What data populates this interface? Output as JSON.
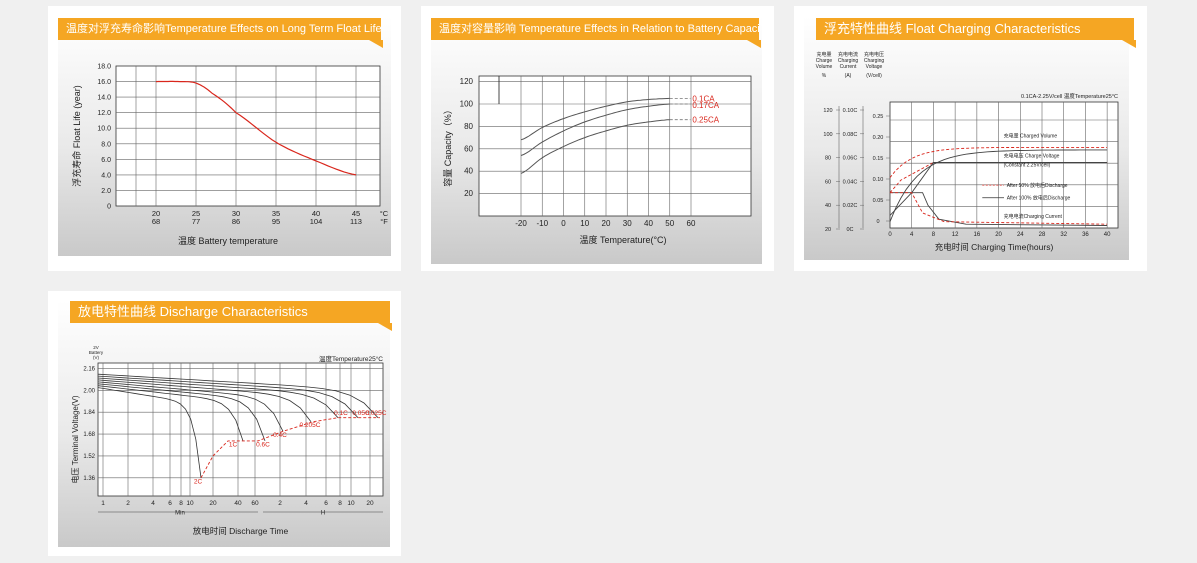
{
  "panels": [
    {
      "banner": "温度对浮充寿命影响Temperature Effects on Long Term Float Life",
      "chart_data": {
        "type": "line",
        "title": "温度对浮充寿命影响Temperature Effects on Long Term Float Life",
        "ylabel": "浮充寿命 Float Life (year)",
        "xlabel": "温度 Battery temperature",
        "x_unit_c": "°C",
        "x_unit_f": "°F",
        "ylim": [
          0,
          18
        ],
        "y_ticks": [
          "18.0",
          "16.0",
          "14.0",
          "12.0",
          "10.0",
          "8.0",
          "6.0",
          "4.0",
          "2.0",
          "0"
        ],
        "x_ticks_c": [
          "20",
          "25",
          "30",
          "35",
          "40",
          "45"
        ],
        "x_ticks_f": [
          "68",
          "77",
          "86",
          "95",
          "104",
          "113"
        ],
        "series": [
          {
            "x": [
              20,
              23,
              25,
              27,
              30,
              35,
              40,
              45
            ],
            "y": [
              16,
              16,
              15.8,
              14.5,
              12,
              8.2,
              5.8,
              4
            ]
          }
        ],
        "grid": true
      }
    },
    {
      "banner": "温度对容量影响 Temperature Effects in Relation to Battery Capacity",
      "chart_data": {
        "type": "line",
        "title": "温度对容量影响 Temperature Effects in Relation to Battery Capacity",
        "ylabel": "容量 Capacity（%）",
        "xlabel": "温度 Temperature(°C)",
        "ylim": [
          0,
          120
        ],
        "y_ticks": [
          "120",
          "100",
          "80",
          "60",
          "40",
          "20"
        ],
        "x_ticks": [
          "-20",
          "-10",
          "0",
          "10",
          "20",
          "30",
          "40",
          "50",
          "60"
        ],
        "series": [
          {
            "name": "0.1CA",
            "x": [
              -20,
              -10,
              0,
              10,
              20,
              30,
              40,
              50,
              55
            ],
            "y": [
              68,
              79,
              87,
              93,
              98,
              102,
              104,
              105,
              105
            ]
          },
          {
            "name": "0.17CA",
            "x": [
              -20,
              -10,
              0,
              10,
              20,
              30,
              40,
              50,
              55
            ],
            "y": [
              54,
              66,
              76,
              84,
              90,
              95,
              98,
              100,
              100
            ]
          },
          {
            "name": "0.25CA",
            "x": [
              -20,
              -10,
              0,
              10,
              20,
              30,
              40,
              50,
              55
            ],
            "y": [
              38,
              52,
              62,
              70,
              76,
              81,
              84,
              86,
              86
            ]
          }
        ],
        "grid": true
      }
    },
    {
      "banner": "浮充特性曲线 Float Charging Characteristics",
      "chart_data": {
        "type": "line",
        "title": "浮充特性曲线 Float Charging Characteristics",
        "axis_headers": [
          {
            "cn": "充电量",
            "en1": "Charge",
            "en2": "Volume",
            "unit": "%"
          },
          {
            "cn": "充电电流",
            "en1": "Charging",
            "en2": "Current",
            "unit": "(A)"
          },
          {
            "cn": "充电电压",
            "en1": "Charging",
            "en2": "Voltage",
            "unit": "(V/cell)"
          }
        ],
        "condition": "0.1CA-2.25V/cell  温度Temperature25°C",
        "xlabel": "充电时间 Charging Time(hours)",
        "x_ticks": [
          "0",
          "4",
          "8",
          "12",
          "16",
          "20",
          "24",
          "28",
          "32",
          "36",
          "40"
        ],
        "y_ticks_volume": [
          "120",
          "100",
          "80",
          "60",
          "40",
          "20"
        ],
        "y_ticks_current": [
          "0.10C",
          "0.08C",
          "0.06C",
          "0.04C",
          "0.02C",
          "0C"
        ],
        "y_ticks_voltage": [
          "0.25",
          "0.20",
          "0.15",
          "0.10",
          "0.05",
          "0"
        ],
        "annotations": [
          "充电量 Charged Volume",
          "充电电压 Charge Voltage",
          "(Constant 2.25V/cell)",
          "After 50% 放电后Discharge",
          "After 100% 放电后Discharge",
          "充电电流Charging Current"
        ],
        "grid": true
      }
    },
    {
      "banner": "放电特性曲线 Discharge Characteristics",
      "chart_data": {
        "type": "line",
        "title": "放电特性曲线 Discharge Characteristics",
        "y_header": [
          "2V",
          "Battery",
          "(V)"
        ],
        "ylabel": "电压 Terminal Voltage(V)",
        "xlabel": "放电时间 Discharge Time",
        "condition": "温度Temperature25°C",
        "y_ticks": [
          "2.16",
          "2.00",
          "1.84",
          "1.68",
          "1.52",
          "1.36"
        ],
        "x_ticks_min": [
          "1",
          "2",
          "4",
          "6",
          "8",
          "10",
          "20",
          "40",
          "60"
        ],
        "x_ticks_h": [
          "2",
          "4",
          "6",
          "8",
          "10",
          "20"
        ],
        "x_unit_min": "Min",
        "x_unit_h": "H",
        "series": [
          {
            "name": "2C"
          },
          {
            "name": "1C"
          },
          {
            "name": "0.6C"
          },
          {
            "name": "0.4C"
          },
          {
            "name": "0.205C"
          },
          {
            "name": "0.1C"
          },
          {
            "name": "0.05C"
          },
          {
            "name": "0.025C"
          }
        ],
        "grid": true
      }
    }
  ],
  "colors": {
    "banner": "#f5a623",
    "red": "#d9261c",
    "line": "#333333",
    "grid": "#666666"
  }
}
